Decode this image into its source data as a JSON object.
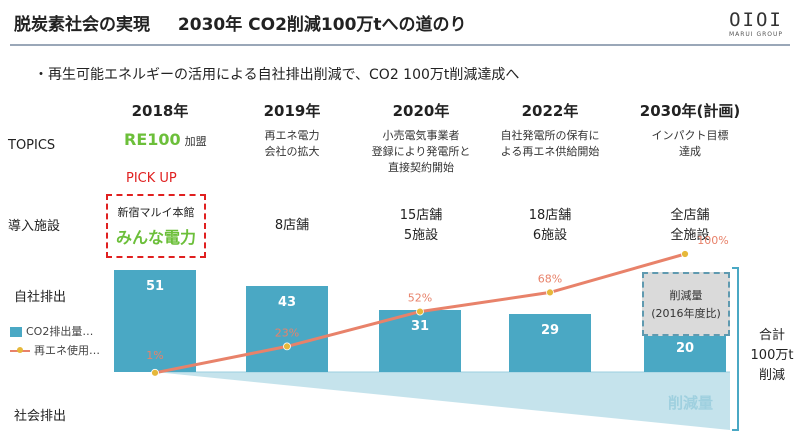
{
  "header": {
    "title_left": "脱炭素社会の実現",
    "title_main": "2030年 CO2削減100万tへの道のり",
    "logo_mark": "OIOI",
    "logo_sub": "MARUI GROUP"
  },
  "bullet": "・再生可能エネルギーの活用による自社排出削減で、CO2 100万t削減達成へ",
  "row_labels": {
    "topics": "TOPICS",
    "facilities": "導入施設",
    "own_emissions": "自社排出",
    "social_emissions": "社会排出"
  },
  "years": [
    "2018年",
    "2019年",
    "2020年",
    "2022年",
    "2030年(計画)"
  ],
  "topics": {
    "re100": "RE100",
    "re100_join": "加盟",
    "y2019": [
      "再エネ電力",
      "会社の拡大"
    ],
    "y2020": [
      "小売電気事業者",
      "登録により発電所と",
      "直接契約開始"
    ],
    "y2022": [
      "自社発電所の保有に",
      "よる再エネ供給開始"
    ],
    "y2030": [
      "インパクト目標",
      "達成"
    ]
  },
  "pickup": {
    "label": "PICK UP",
    "store": "新宿マルイ本館",
    "brand": "みんな電力"
  },
  "facilities": {
    "y2019": [
      "8店舗"
    ],
    "y2020": [
      "15店舗",
      "5施設"
    ],
    "y2022": [
      "18店舗",
      "6施設"
    ],
    "y2030": [
      "全店舗",
      "全施設"
    ]
  },
  "legend": {
    "bar": "CO2排出量…",
    "line": "再エネ使用…"
  },
  "reduction": {
    "box_label": "削減量",
    "box_sub": "(2016年度比)",
    "triangle_label": "削減量",
    "total": [
      "合計",
      "100万t",
      "削減"
    ]
  },
  "colors": {
    "bar": "#4aa8c4",
    "line": "#e8826a",
    "marker": "#e6b83a",
    "reduction_fill": "#bfe0ea",
    "pickup": "#e02020",
    "re100": "#6cbf3a"
  },
  "chart_data": {
    "type": "bar",
    "categories": [
      "2018年",
      "2019年",
      "2020年",
      "2022年",
      "2030年(計画)"
    ],
    "series": [
      {
        "name": "CO2排出量",
        "type": "bar",
        "values": [
          51,
          43,
          31,
          29,
          20
        ]
      },
      {
        "name": "再エネ使用率",
        "type": "line",
        "values": [
          1,
          23,
          52,
          68,
          100
        ],
        "labels": [
          "1%",
          "23%",
          "52%",
          "68%",
          "100%"
        ]
      }
    ]
  }
}
